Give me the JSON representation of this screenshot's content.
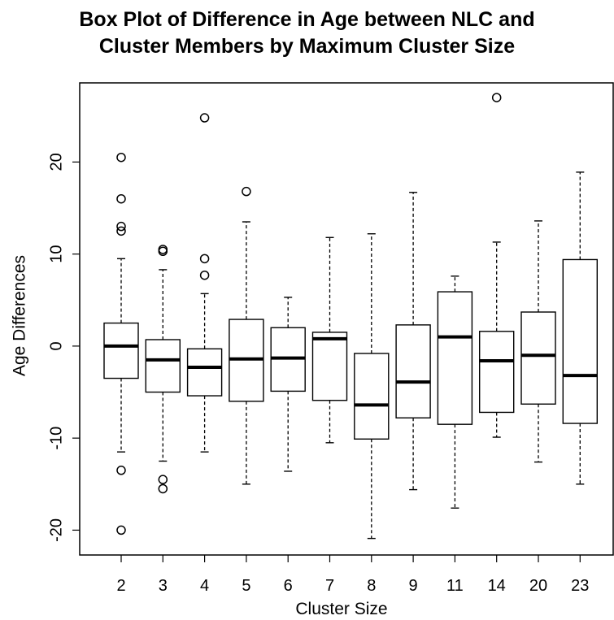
{
  "chart_data": {
    "type": "box",
    "title_lines": [
      "Box Plot of Difference in Age between NLC and",
      "Cluster Members by Maximum Cluster Size"
    ],
    "xlabel": "Cluster Size",
    "ylabel": "Age Differences",
    "yticks": [
      -20,
      -10,
      0,
      10,
      20
    ],
    "ylim": [
      -22.7,
      28.6
    ],
    "grid": false,
    "legend": "none",
    "categories": [
      "2",
      "3",
      "4",
      "5",
      "6",
      "7",
      "8",
      "9",
      "11",
      "14",
      "20",
      "23"
    ],
    "boxes": [
      {
        "label": "2",
        "lower_whisker": -11.5,
        "q1": -3.5,
        "median": 0.0,
        "q3": 2.5,
        "upper_whisker": 9.5,
        "outliers": [
          20.5,
          16.0,
          13.0,
          12.5,
          -13.5,
          -20.0
        ]
      },
      {
        "label": "3",
        "lower_whisker": -12.5,
        "q1": -5.0,
        "median": -1.5,
        "q3": 0.7,
        "upper_whisker": 8.3,
        "outliers": [
          10.5,
          10.3,
          -14.5,
          -15.5
        ]
      },
      {
        "label": "4",
        "lower_whisker": -11.5,
        "q1": -5.4,
        "median": -2.3,
        "q3": -0.3,
        "upper_whisker": 5.7,
        "outliers": [
          24.8,
          9.5,
          7.7
        ]
      },
      {
        "label": "5",
        "lower_whisker": -15.0,
        "q1": -6.0,
        "median": -1.4,
        "q3": 2.9,
        "upper_whisker": 13.5,
        "outliers": [
          16.8
        ]
      },
      {
        "label": "6",
        "lower_whisker": -13.6,
        "q1": -4.9,
        "median": -1.3,
        "q3": 2.0,
        "upper_whisker": 5.3,
        "outliers": []
      },
      {
        "label": "7",
        "lower_whisker": -10.5,
        "q1": -5.9,
        "median": 0.8,
        "q3": 1.5,
        "upper_whisker": 11.8,
        "outliers": []
      },
      {
        "label": "8",
        "lower_whisker": -20.9,
        "q1": -10.1,
        "median": -6.4,
        "q3": -0.8,
        "upper_whisker": 12.2,
        "outliers": []
      },
      {
        "label": "9",
        "lower_whisker": -15.6,
        "q1": -7.8,
        "median": -3.9,
        "q3": 2.3,
        "upper_whisker": 16.7,
        "outliers": []
      },
      {
        "label": "11",
        "lower_whisker": -17.6,
        "q1": -8.5,
        "median": 1.0,
        "q3": 5.9,
        "upper_whisker": 7.6,
        "outliers": []
      },
      {
        "label": "14",
        "lower_whisker": -9.9,
        "q1": -7.2,
        "median": -1.6,
        "q3": 1.6,
        "upper_whisker": 11.3,
        "outliers": [
          27.0
        ]
      },
      {
        "label": "20",
        "lower_whisker": -12.6,
        "q1": -6.3,
        "median": -1.0,
        "q3": 3.7,
        "upper_whisker": 13.6,
        "outliers": []
      },
      {
        "label": "23",
        "lower_whisker": -15.0,
        "q1": -8.4,
        "median": -3.2,
        "q3": 9.4,
        "upper_whisker": 18.9,
        "outliers": []
      }
    ]
  }
}
